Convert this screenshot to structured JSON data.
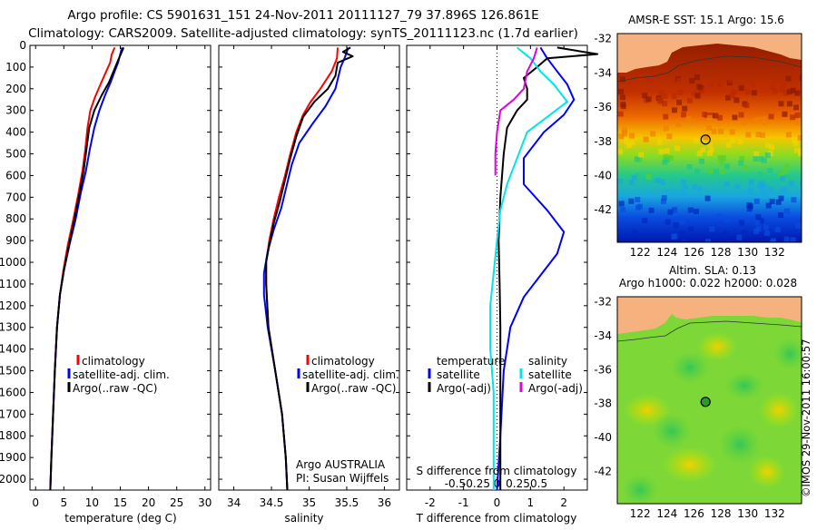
{
  "header": {
    "line1": "Argo profile: CS 5901631_151 24-Nov-2011 20111127_79 37.896S 126.861E",
    "line2": "Climatology: CARS2009. Satellite-adjusted climatology: synTS_20111123.nc (1.7d earlier)"
  },
  "colors": {
    "climatology": "#ff0000",
    "satellite": "#0000ff",
    "argo": "#000000",
    "sat_sal": "#00e5e5",
    "argo_sal": "#e000e0",
    "land": "#f6b27e"
  },
  "chart_data": [
    {
      "type": "line",
      "id": "temperature",
      "xlabel": "temperature (deg C)",
      "ylabel": "",
      "xlim": [
        -1,
        31
      ],
      "ylim": [
        2050,
        0
      ],
      "xticks": [
        0,
        5,
        10,
        15,
        20,
        25,
        30
      ],
      "yticks": [
        0,
        100,
        200,
        300,
        400,
        500,
        600,
        700,
        800,
        900,
        1000,
        1100,
        1200,
        1300,
        1400,
        1500,
        1600,
        1700,
        1800,
        1900,
        2000
      ],
      "legend": [
        "climatology",
        "satellite-adj. clim.",
        "Argo(..raw -QC)"
      ],
      "series": [
        {
          "name": "climatology",
          "color": "#ff0000",
          "points": [
            [
              14,
              10
            ],
            [
              13.5,
              40
            ],
            [
              13.2,
              80
            ],
            [
              12.5,
              120
            ],
            [
              11.5,
              180
            ],
            [
              10.5,
              240
            ],
            [
              9.7,
              300
            ],
            [
              9.2,
              380
            ],
            [
              8.8,
              480
            ],
            [
              8.3,
              580
            ],
            [
              7.6,
              680
            ],
            [
              6.7,
              800
            ],
            [
              5.7,
              920
            ],
            [
              4.9,
              1040
            ],
            [
              4.3,
              1150
            ],
            [
              3.8,
              1300
            ],
            [
              3.4,
              1500
            ],
            [
              3.1,
              1700
            ],
            [
              2.8,
              1900
            ],
            [
              2.6,
              2050
            ]
          ]
        },
        {
          "name": "satellite-adj. clim.",
          "color": "#0000ff",
          "points": [
            [
              15.3,
              10
            ],
            [
              15,
              40
            ],
            [
              14.6,
              80
            ],
            [
              14,
              120
            ],
            [
              13.3,
              170
            ],
            [
              12.3,
              230
            ],
            [
              11.3,
              300
            ],
            [
              10.4,
              380
            ],
            [
              9.6,
              480
            ],
            [
              8.9,
              580
            ],
            [
              8,
              680
            ],
            [
              7.1,
              800
            ],
            [
              6,
              920
            ],
            [
              5,
              1040
            ],
            [
              4.3,
              1150
            ],
            [
              3.8,
              1300
            ],
            [
              3.4,
              1500
            ],
            [
              3.1,
              1700
            ],
            [
              2.8,
              1900
            ],
            [
              2.6,
              2050
            ]
          ]
        },
        {
          "name": "Argo(..raw -QC)",
          "color": "#000000",
          "points": [
            [
              15.6,
              10
            ],
            [
              15.1,
              40
            ],
            [
              14.6,
              70
            ],
            [
              13.8,
              120
            ],
            [
              13,
              170
            ],
            [
              11.7,
              230
            ],
            [
              10.4,
              300
            ],
            [
              9.5,
              380
            ],
            [
              9,
              480
            ],
            [
              8.5,
              580
            ],
            [
              7.8,
              680
            ],
            [
              6.9,
              800
            ],
            [
              5.9,
              920
            ],
            [
              5,
              1040
            ],
            [
              4.3,
              1150
            ],
            [
              3.8,
              1300
            ],
            [
              3.4,
              1500
            ],
            [
              3.1,
              1700
            ],
            [
              2.8,
              1900
            ],
            [
              2.6,
              2050
            ]
          ]
        }
      ]
    },
    {
      "type": "line",
      "id": "salinity",
      "xlabel": "salinity",
      "ylabel": "",
      "xlim": [
        33.8,
        36.2
      ],
      "ylim": [
        2050,
        0
      ],
      "xticks": [
        34,
        34.5,
        35,
        35.5,
        36
      ],
      "legend": [
        "climatology",
        "satellite-adj. clim.",
        "Argo(..raw -QC)"
      ],
      "series": [
        {
          "name": "climatology",
          "color": "#ff0000",
          "points": [
            [
              35.38,
              10
            ],
            [
              35.37,
              60
            ],
            [
              35.3,
              120
            ],
            [
              35.15,
              200
            ],
            [
              35.02,
              260
            ],
            [
              34.92,
              320
            ],
            [
              34.83,
              400
            ],
            [
              34.75,
              500
            ],
            [
              34.68,
              600
            ],
            [
              34.6,
              700
            ],
            [
              34.53,
              800
            ],
            [
              34.47,
              900
            ],
            [
              34.43,
              1000
            ],
            [
              34.43,
              1100
            ],
            [
              34.46,
              1300
            ],
            [
              34.55,
              1500
            ],
            [
              34.64,
              1700
            ],
            [
              34.69,
              1900
            ],
            [
              34.71,
              2050
            ]
          ]
        },
        {
          "name": "satellite-adj. clim.",
          "color": "#0000ff",
          "points": [
            [
              35.52,
              10
            ],
            [
              35.47,
              60
            ],
            [
              35.42,
              100
            ],
            [
              35.35,
              200
            ],
            [
              35.22,
              280
            ],
            [
              35.05,
              360
            ],
            [
              34.87,
              450
            ],
            [
              34.77,
              550
            ],
            [
              34.7,
              650
            ],
            [
              34.63,
              750
            ],
            [
              34.53,
              850
            ],
            [
              34.45,
              950
            ],
            [
              34.4,
              1050
            ],
            [
              34.4,
              1150
            ],
            [
              34.45,
              1300
            ],
            [
              34.55,
              1500
            ],
            [
              34.64,
              1700
            ],
            [
              34.69,
              1900
            ],
            [
              34.71,
              2050
            ]
          ]
        },
        {
          "name": "Argo(..raw -QC)",
          "color": "#000000",
          "points": [
            [
              35.55,
              10
            ],
            [
              35.45,
              30
            ],
            [
              35.58,
              50
            ],
            [
              35.38,
              80
            ],
            [
              35.35,
              140
            ],
            [
              35.25,
              200
            ],
            [
              35.07,
              260
            ],
            [
              34.92,
              330
            ],
            [
              34.83,
              420
            ],
            [
              34.75,
              520
            ],
            [
              34.68,
              620
            ],
            [
              34.61,
              720
            ],
            [
              34.53,
              820
            ],
            [
              34.47,
              920
            ],
            [
              34.43,
              1000
            ],
            [
              34.43,
              1100
            ],
            [
              34.46,
              1300
            ],
            [
              34.55,
              1500
            ],
            [
              34.64,
              1700
            ],
            [
              34.69,
              1900
            ],
            [
              34.71,
              2050
            ]
          ]
        }
      ],
      "annotations": [
        "Argo AUSTRALIA",
        "PI: Susan Wijffels"
      ]
    },
    {
      "type": "line",
      "id": "difference",
      "xlabel": "T difference from climatology",
      "xlabel2": "S difference from climatology",
      "xlim": [
        -2.7,
        2.7
      ],
      "ylim": [
        2050,
        0
      ],
      "xticks": [
        -2,
        -1,
        0,
        1,
        2
      ],
      "xticks2_labels": [
        "-0.5",
        "-0.25",
        "0",
        "0.25",
        "0.5"
      ],
      "legend_temperature_title": "temperature",
      "legend_salinity_title": "salinity",
      "legend_temperature": [
        "satellite",
        "Argo(-adj)"
      ],
      "legend_salinity": [
        "satellite",
        "Argo(-adj)"
      ],
      "series": [
        {
          "name": "satellite",
          "color": "#0000ff",
          "points": [
            [
              1.3,
              10
            ],
            [
              1.5,
              60
            ],
            [
              1.8,
              120
            ],
            [
              2.1,
              180
            ],
            [
              2.3,
              250
            ],
            [
              2.0,
              320
            ],
            [
              1.4,
              400
            ],
            [
              0.8,
              520
            ],
            [
              0.8,
              640
            ],
            [
              1.5,
              760
            ],
            [
              2.0,
              860
            ],
            [
              1.8,
              960
            ],
            [
              1.3,
              1060
            ],
            [
              0.8,
              1160
            ],
            [
              0.4,
              1300
            ],
            [
              0.2,
              1500
            ],
            [
              0.1,
              1800
            ],
            [
              0,
              2050
            ]
          ]
        },
        {
          "name": "Argo(-adj)",
          "color": "#000000",
          "points": [
            [
              1.8,
              10
            ],
            [
              3.0,
              40
            ],
            [
              1.5,
              60
            ],
            [
              1.2,
              100
            ],
            [
              0.8,
              150
            ],
            [
              0.9,
              200
            ],
            [
              0.9,
              250
            ],
            [
              0.6,
              300
            ],
            [
              0.3,
              380
            ],
            [
              0.2,
              500
            ],
            [
              0.1,
              700
            ],
            [
              0.05,
              900
            ],
            [
              0.08,
              1100
            ],
            [
              0.1,
              1300
            ],
            [
              0.1,
              1600
            ],
            [
              0.1,
              1800
            ],
            [
              0.1,
              2050
            ]
          ]
        },
        {
          "name": "satellite (salinity)",
          "color": "#00e5e5",
          "points": [
            [
              0.6,
              10
            ],
            [
              1.0,
              60
            ],
            [
              1.3,
              120
            ],
            [
              1.7,
              180
            ],
            [
              2.1,
              260
            ],
            [
              1.5,
              330
            ],
            [
              0.9,
              400
            ],
            [
              0.6,
              520
            ],
            [
              0.3,
              640
            ],
            [
              0.1,
              760
            ],
            [
              0,
              900
            ],
            [
              -0.1,
              1050
            ],
            [
              -0.2,
              1200
            ],
            [
              -0.2,
              1400
            ],
            [
              -0.1,
              1600
            ],
            [
              -0.1,
              1800
            ],
            [
              -0.1,
              2050
            ]
          ]
        },
        {
          "name": "Argo(-adj) (salinity)",
          "color": "#e000e0",
          "points": [
            [
              1.2,
              10
            ],
            [
              1.1,
              60
            ],
            [
              0.9,
              120
            ],
            [
              0.8,
              200
            ],
            [
              0.5,
              250
            ],
            [
              0.1,
              300
            ],
            [
              0,
              400
            ],
            [
              -0.05,
              500
            ],
            [
              -0.05,
              600
            ]
          ]
        }
      ]
    },
    {
      "type": "heatmap",
      "id": "sst",
      "title": "AMSR-E SST: 15.1 Argo: 15.6",
      "xticks": [
        122,
        124,
        126,
        128,
        130,
        132
      ],
      "yticks": [
        -32,
        -34,
        -36,
        -38,
        -40,
        -42
      ],
      "xlim": [
        120.3,
        134
      ],
      "ylim": [
        -43.9,
        -31.7
      ],
      "marker": {
        "lon": 126.861,
        "lat": -37.896
      }
    },
    {
      "type": "heatmap",
      "id": "sla",
      "title_line1": "Altim. SLA: 0.13",
      "title_line2": "Argo h1000: 0.022 h2000: 0.028",
      "xticks": [
        122,
        124,
        126,
        128,
        130,
        132
      ],
      "yticks": [
        -32,
        -34,
        -36,
        -38,
        -40,
        -42
      ],
      "xlim": [
        120.3,
        134
      ],
      "ylim": [
        -43.9,
        -31.7
      ],
      "marker": {
        "lon": 126.861,
        "lat": -37.896
      }
    }
  ],
  "footer": {
    "credit": "©IMOS 29-Nov-2011 16:00:57"
  }
}
